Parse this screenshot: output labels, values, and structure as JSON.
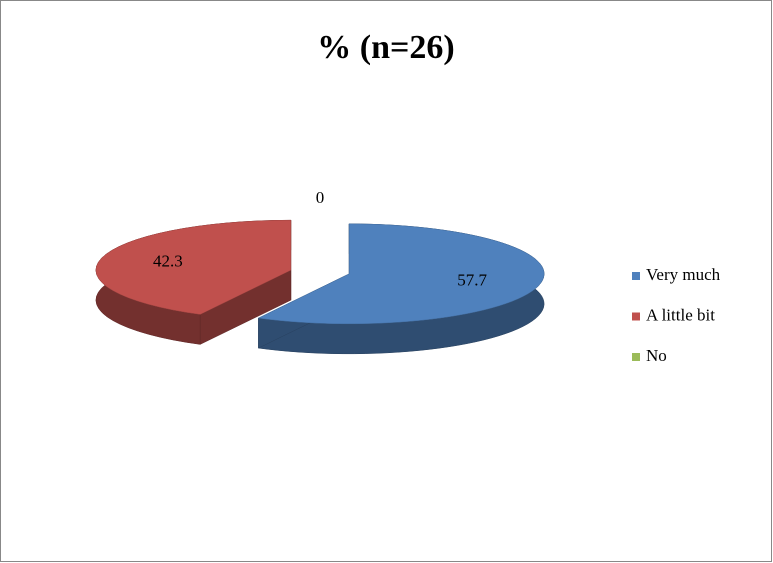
{
  "chart_data": {
    "type": "pie",
    "title": "% (n=26)",
    "categories": [
      "Very much",
      "A little bit",
      "No"
    ],
    "values": [
      57.7,
      42.3,
      0
    ],
    "colors": [
      "#4f81bd",
      "#c0504d",
      "#9bbb59"
    ],
    "legend": "right"
  }
}
